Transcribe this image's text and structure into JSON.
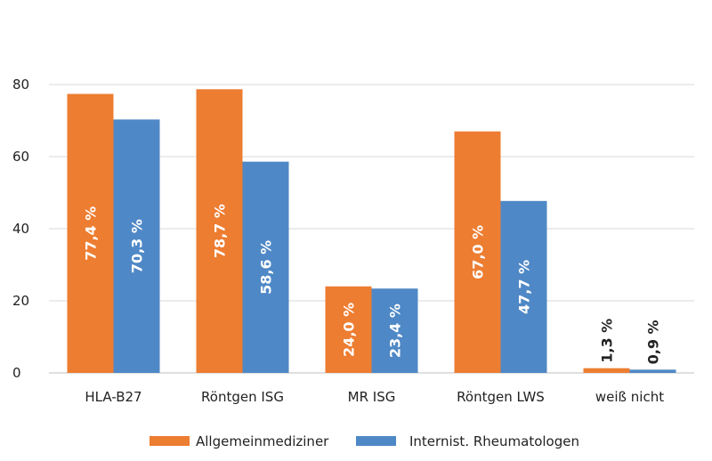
{
  "chart_data": {
    "type": "bar",
    "categories": [
      "HLA-B27",
      "Röntgen ISG",
      "MR ISG",
      "Röntgen LWS",
      "weiß nicht"
    ],
    "series": [
      {
        "name": "Allgemeinmediziner",
        "color": "#ED7D31",
        "values": [
          77.4,
          78.7,
          24.0,
          67.0,
          1.3
        ],
        "labels": [
          "77,4 %",
          "78,7 %",
          "24,0 %",
          "67,0 %",
          "1,3 %"
        ]
      },
      {
        "name": "Internist. Rheumatologen",
        "color": "#4F88C6",
        "values": [
          70.3,
          58.6,
          23.4,
          47.7,
          0.9
        ],
        "labels": [
          "70,3 %",
          "58,6 %",
          "23,4 %",
          "47,7 %",
          "0,9 %"
        ]
      }
    ],
    "y_ticks": [
      "0",
      "20",
      "40",
      "60",
      "80"
    ],
    "ylim": [
      0,
      80
    ],
    "grid": true,
    "legend_position": "bottom"
  }
}
